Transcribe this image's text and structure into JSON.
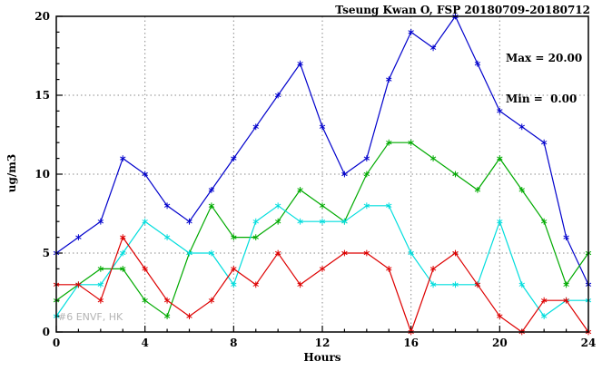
{
  "title": "Tseung Kwan O, FSP 20180709-20180712",
  "stats": {
    "max_label": "Max = 20.00",
    "min_label": "Min =  0.00"
  },
  "watermark": "#6 ENVF, HK",
  "chart_data": {
    "type": "line",
    "title": "Tseung Kwan O, FSP 20180709-20180712",
    "xlabel": "Hours",
    "ylabel": "ug/m3",
    "xlim": [
      0,
      24
    ],
    "ylim": [
      0,
      20
    ],
    "xticks": [
      0,
      4,
      8,
      12,
      16,
      20,
      24
    ],
    "yticks": [
      0,
      5,
      10,
      15,
      20
    ],
    "minor_tick_step_x": 1,
    "minor_tick_step_y": 1,
    "grid": true,
    "grid_style": "dotted",
    "legend": "none",
    "marker": "asterisk",
    "x": [
      0,
      1,
      2,
      3,
      4,
      5,
      6,
      7,
      8,
      9,
      10,
      11,
      12,
      13,
      14,
      15,
      16,
      17,
      18,
      19,
      20,
      21,
      22,
      23,
      24
    ],
    "series": [
      {
        "name": "series-blue",
        "color": "#0000cc",
        "values": [
          5,
          6,
          7,
          11,
          10,
          8,
          7,
          9,
          11,
          13,
          15,
          17,
          13,
          10,
          11,
          16,
          19,
          18,
          20,
          17,
          14,
          13,
          12,
          6,
          3
        ]
      },
      {
        "name": "series-green",
        "color": "#00aa00",
        "values": [
          2,
          3,
          4,
          4,
          2,
          1,
          5,
          8,
          6,
          6,
          7,
          9,
          8,
          7,
          10,
          12,
          12,
          11,
          10,
          9,
          11,
          9,
          7,
          3,
          5
        ]
      },
      {
        "name": "series-cyan",
        "color": "#00dddd",
        "values": [
          1,
          3,
          3,
          5,
          7,
          6,
          5,
          5,
          3,
          7,
          8,
          7,
          7,
          7,
          8,
          8,
          5,
          3,
          3,
          3,
          7,
          3,
          1,
          2,
          2
        ]
      },
      {
        "name": "series-red",
        "color": "#dd0000",
        "values": [
          3,
          3,
          2,
          6,
          4,
          2,
          1,
          2,
          4,
          3,
          5,
          3,
          4,
          5,
          5,
          4,
          0,
          4,
          5,
          3,
          1,
          0,
          2,
          2,
          0
        ]
      }
    ]
  }
}
